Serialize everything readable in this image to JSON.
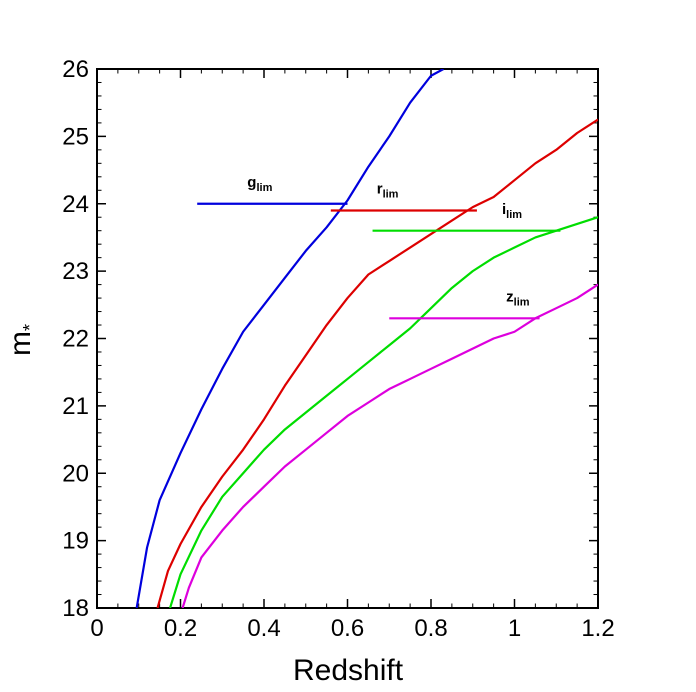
{
  "chart_data": {
    "type": "line",
    "title": "",
    "xlabel": "Redshift",
    "ylabel": "m",
    "ylabel_subscript": "*",
    "xlim": [
      0,
      1.2
    ],
    "ylim": [
      18,
      26
    ],
    "x_ticks": [
      0,
      0.2,
      0.4,
      0.6,
      0.8,
      1,
      1.2
    ],
    "x_tick_labels": [
      "0",
      "0.2",
      "0.4",
      "0.6",
      "0.8",
      "1",
      "1.2"
    ],
    "y_ticks": [
      18,
      19,
      20,
      21,
      22,
      23,
      24,
      25,
      26
    ],
    "y_tick_labels": [
      "18",
      "19",
      "20",
      "21",
      "22",
      "23",
      "24",
      "25",
      "26"
    ],
    "grid": false,
    "series": [
      {
        "color": "#0000dd",
        "points": [
          [
            0.095,
            18.0
          ],
          [
            0.12,
            18.9
          ],
          [
            0.15,
            19.6
          ],
          [
            0.2,
            20.3
          ],
          [
            0.25,
            20.95
          ],
          [
            0.3,
            21.55
          ],
          [
            0.35,
            22.1
          ],
          [
            0.4,
            22.5
          ],
          [
            0.45,
            22.9
          ],
          [
            0.5,
            23.3
          ],
          [
            0.55,
            23.65
          ],
          [
            0.6,
            24.05
          ],
          [
            0.65,
            24.55
          ],
          [
            0.7,
            25.0
          ],
          [
            0.75,
            25.5
          ],
          [
            0.8,
            25.9
          ],
          [
            0.83,
            26.0
          ]
        ]
      },
      {
        "color": "#dd0000",
        "points": [
          [
            0.145,
            18.0
          ],
          [
            0.17,
            18.55
          ],
          [
            0.2,
            18.95
          ],
          [
            0.25,
            19.5
          ],
          [
            0.3,
            19.95
          ],
          [
            0.35,
            20.35
          ],
          [
            0.4,
            20.8
          ],
          [
            0.45,
            21.3
          ],
          [
            0.5,
            21.75
          ],
          [
            0.55,
            22.2
          ],
          [
            0.6,
            22.6
          ],
          [
            0.65,
            22.95
          ],
          [
            0.7,
            23.15
          ],
          [
            0.75,
            23.35
          ],
          [
            0.8,
            23.55
          ],
          [
            0.85,
            23.75
          ],
          [
            0.9,
            23.95
          ],
          [
            0.95,
            24.1
          ],
          [
            1.0,
            24.35
          ],
          [
            1.05,
            24.6
          ],
          [
            1.1,
            24.8
          ],
          [
            1.15,
            25.05
          ],
          [
            1.2,
            25.25
          ]
        ]
      },
      {
        "color": "#00dd00",
        "points": [
          [
            0.175,
            18.0
          ],
          [
            0.2,
            18.5
          ],
          [
            0.25,
            19.15
          ],
          [
            0.3,
            19.65
          ],
          [
            0.35,
            20.0
          ],
          [
            0.4,
            20.35
          ],
          [
            0.45,
            20.65
          ],
          [
            0.5,
            20.9
          ],
          [
            0.55,
            21.15
          ],
          [
            0.6,
            21.4
          ],
          [
            0.65,
            21.65
          ],
          [
            0.7,
            21.9
          ],
          [
            0.75,
            22.15
          ],
          [
            0.8,
            22.45
          ],
          [
            0.85,
            22.75
          ],
          [
            0.9,
            23.0
          ],
          [
            0.95,
            23.2
          ],
          [
            1.0,
            23.35
          ],
          [
            1.05,
            23.5
          ],
          [
            1.1,
            23.6
          ],
          [
            1.15,
            23.7
          ],
          [
            1.2,
            23.8
          ]
        ]
      },
      {
        "color": "#dd00dd",
        "points": [
          [
            0.205,
            18.0
          ],
          [
            0.22,
            18.3
          ],
          [
            0.25,
            18.75
          ],
          [
            0.3,
            19.15
          ],
          [
            0.35,
            19.5
          ],
          [
            0.4,
            19.8
          ],
          [
            0.45,
            20.1
          ],
          [
            0.5,
            20.35
          ],
          [
            0.55,
            20.6
          ],
          [
            0.6,
            20.85
          ],
          [
            0.65,
            21.05
          ],
          [
            0.7,
            21.25
          ],
          [
            0.75,
            21.4
          ],
          [
            0.8,
            21.55
          ],
          [
            0.85,
            21.7
          ],
          [
            0.9,
            21.85
          ],
          [
            0.95,
            22.0
          ],
          [
            1.0,
            22.1
          ],
          [
            1.05,
            22.3
          ],
          [
            1.1,
            22.45
          ],
          [
            1.15,
            22.6
          ],
          [
            1.2,
            22.8
          ]
        ]
      }
    ],
    "limit_lines": [
      {
        "label": "g",
        "sub": "lim",
        "color": "#0000dd",
        "y": 24.0,
        "x_start": 0.24,
        "x_end": 0.6,
        "label_x": 0.36,
        "label_y": 24.25
      },
      {
        "label": "r",
        "sub": "lim",
        "color": "#dd0000",
        "y": 23.9,
        "x_start": 0.56,
        "x_end": 0.91,
        "label_x": 0.67,
        "label_y": 24.15
      },
      {
        "label": "i",
        "sub": "lim",
        "color": "#00dd00",
        "y": 23.6,
        "x_start": 0.66,
        "x_end": 1.11,
        "label_x": 0.97,
        "label_y": 23.85
      },
      {
        "label": "z",
        "sub": "lim",
        "color": "#dd00dd",
        "y": 22.3,
        "x_start": 0.7,
        "x_end": 1.06,
        "label_x": 0.98,
        "label_y": 22.55
      }
    ]
  }
}
